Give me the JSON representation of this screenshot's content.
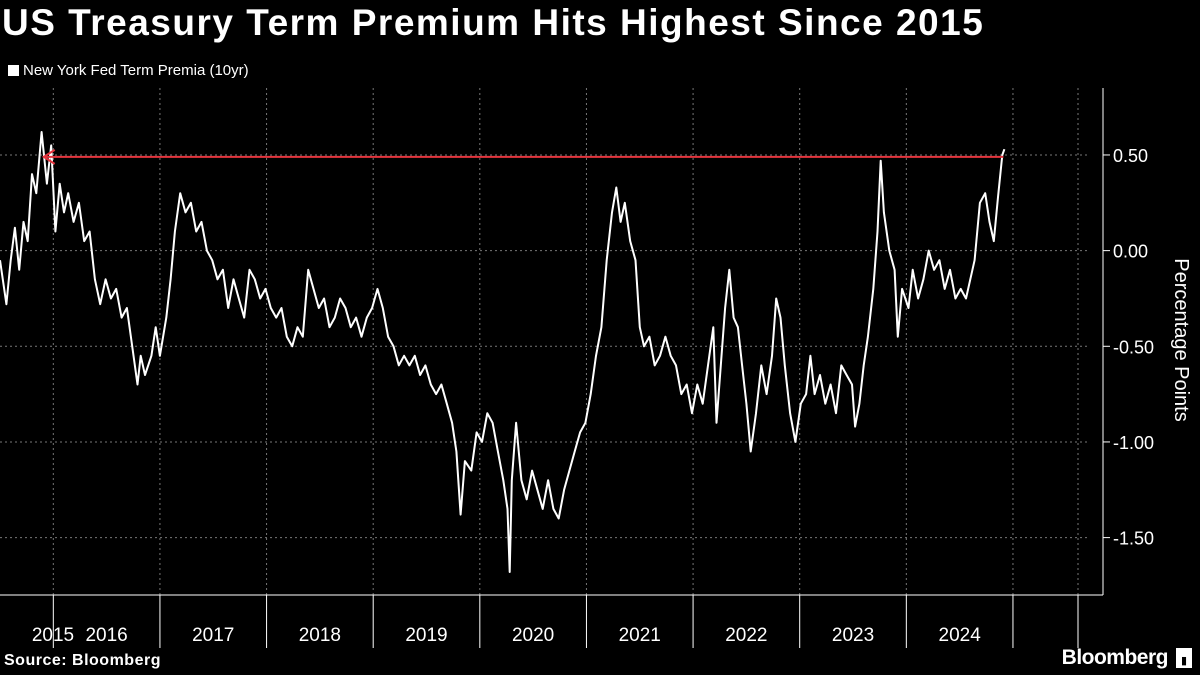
{
  "title": "US Treasury Term Premium Hits Highest Since 2015",
  "source": "Source: Bloomberg",
  "brand": "Bloomberg",
  "colors": {
    "background": "#000000",
    "line": "#ffffff",
    "annotation": "#e5343d",
    "grid": "#777777"
  },
  "chart_data": {
    "type": "line",
    "title": "US Treasury Term Premium Hits Highest Since 2015",
    "xlabel": "",
    "ylabel": "Percentage Points",
    "ylim": [
      -1.8,
      0.85
    ],
    "xlim": [
      2014.86,
      2024.97
    ],
    "yticks": [
      0.5,
      0.0,
      -0.5,
      -1.0,
      -1.5
    ],
    "ytick_labels": [
      "0.50",
      "0.00",
      "-0.50",
      "-1.00",
      "-1.50"
    ],
    "xtick_labels": [
      "2015",
      "2016",
      "2017",
      "2018",
      "2019",
      "2020",
      "2021",
      "2022",
      "2023",
      "2024"
    ],
    "year_dividers": [
      2015.36,
      2016.36,
      2017.36,
      2018.36,
      2019.36,
      2020.36,
      2021.36,
      2022.36,
      2023.36,
      2024.36,
      2024.97
    ],
    "grid": true,
    "legend": "top-left",
    "series": [
      {
        "name": "New York Fed Term Premia (10yr)",
        "points": [
          [
            2014.86,
            -0.05
          ],
          [
            2014.92,
            -0.28
          ],
          [
            2014.96,
            -0.05
          ],
          [
            2015.0,
            0.12
          ],
          [
            2015.04,
            -0.1
          ],
          [
            2015.08,
            0.15
          ],
          [
            2015.12,
            0.05
          ],
          [
            2015.16,
            0.4
          ],
          [
            2015.2,
            0.3
          ],
          [
            2015.25,
            0.62
          ],
          [
            2015.3,
            0.35
          ],
          [
            2015.34,
            0.55
          ],
          [
            2015.38,
            0.1
          ],
          [
            2015.42,
            0.35
          ],
          [
            2015.46,
            0.2
          ],
          [
            2015.5,
            0.3
          ],
          [
            2015.55,
            0.15
          ],
          [
            2015.6,
            0.25
          ],
          [
            2015.65,
            0.05
          ],
          [
            2015.7,
            0.1
          ],
          [
            2015.75,
            -0.15
          ],
          [
            2015.8,
            -0.28
          ],
          [
            2015.85,
            -0.15
          ],
          [
            2015.9,
            -0.25
          ],
          [
            2015.95,
            -0.2
          ],
          [
            2016.0,
            -0.35
          ],
          [
            2016.05,
            -0.3
          ],
          [
            2016.1,
            -0.5
          ],
          [
            2016.15,
            -0.7
          ],
          [
            2016.18,
            -0.55
          ],
          [
            2016.22,
            -0.65
          ],
          [
            2016.28,
            -0.55
          ],
          [
            2016.32,
            -0.4
          ],
          [
            2016.36,
            -0.55
          ],
          [
            2016.42,
            -0.35
          ],
          [
            2016.46,
            -0.15
          ],
          [
            2016.5,
            0.1
          ],
          [
            2016.55,
            0.3
          ],
          [
            2016.6,
            0.2
          ],
          [
            2016.65,
            0.25
          ],
          [
            2016.7,
            0.1
          ],
          [
            2016.75,
            0.15
          ],
          [
            2016.8,
            0.0
          ],
          [
            2016.85,
            -0.05
          ],
          [
            2016.9,
            -0.15
          ],
          [
            2016.95,
            -0.1
          ],
          [
            2017.0,
            -0.3
          ],
          [
            2017.05,
            -0.15
          ],
          [
            2017.1,
            -0.25
          ],
          [
            2017.15,
            -0.35
          ],
          [
            2017.2,
            -0.1
          ],
          [
            2017.25,
            -0.15
          ],
          [
            2017.3,
            -0.25
          ],
          [
            2017.35,
            -0.2
          ],
          [
            2017.4,
            -0.3
          ],
          [
            2017.45,
            -0.35
          ],
          [
            2017.5,
            -0.3
          ],
          [
            2017.55,
            -0.45
          ],
          [
            2017.6,
            -0.5
          ],
          [
            2017.65,
            -0.4
          ],
          [
            2017.7,
            -0.45
          ],
          [
            2017.75,
            -0.1
          ],
          [
            2017.8,
            -0.2
          ],
          [
            2017.85,
            -0.3
          ],
          [
            2017.9,
            -0.25
          ],
          [
            2017.95,
            -0.4
          ],
          [
            2018.0,
            -0.35
          ],
          [
            2018.05,
            -0.25
          ],
          [
            2018.1,
            -0.3
          ],
          [
            2018.15,
            -0.4
          ],
          [
            2018.2,
            -0.35
          ],
          [
            2018.25,
            -0.45
          ],
          [
            2018.3,
            -0.35
          ],
          [
            2018.35,
            -0.3
          ],
          [
            2018.4,
            -0.2
          ],
          [
            2018.45,
            -0.3
          ],
          [
            2018.5,
            -0.45
          ],
          [
            2018.55,
            -0.5
          ],
          [
            2018.6,
            -0.6
          ],
          [
            2018.65,
            -0.55
          ],
          [
            2018.7,
            -0.6
          ],
          [
            2018.75,
            -0.55
          ],
          [
            2018.8,
            -0.65
          ],
          [
            2018.85,
            -0.6
          ],
          [
            2018.9,
            -0.7
          ],
          [
            2018.95,
            -0.75
          ],
          [
            2019.0,
            -0.7
          ],
          [
            2019.05,
            -0.8
          ],
          [
            2019.1,
            -0.9
          ],
          [
            2019.14,
            -1.05
          ],
          [
            2019.18,
            -1.38
          ],
          [
            2019.22,
            -1.1
          ],
          [
            2019.28,
            -1.15
          ],
          [
            2019.33,
            -0.95
          ],
          [
            2019.38,
            -1.0
          ],
          [
            2019.43,
            -0.85
          ],
          [
            2019.48,
            -0.9
          ],
          [
            2019.53,
            -1.05
          ],
          [
            2019.58,
            -1.2
          ],
          [
            2019.62,
            -1.35
          ],
          [
            2019.64,
            -1.68
          ],
          [
            2019.66,
            -1.2
          ],
          [
            2019.7,
            -0.9
          ],
          [
            2019.75,
            -1.2
          ],
          [
            2019.8,
            -1.3
          ],
          [
            2019.85,
            -1.15
          ],
          [
            2019.9,
            -1.25
          ],
          [
            2019.95,
            -1.35
          ],
          [
            2020.0,
            -1.2
          ],
          [
            2020.05,
            -1.35
          ],
          [
            2020.1,
            -1.4
          ],
          [
            2020.15,
            -1.25
          ],
          [
            2020.2,
            -1.15
          ],
          [
            2020.25,
            -1.05
          ],
          [
            2020.3,
            -0.95
          ],
          [
            2020.35,
            -0.9
          ],
          [
            2020.4,
            -0.75
          ],
          [
            2020.45,
            -0.55
          ],
          [
            2020.5,
            -0.4
          ],
          [
            2020.55,
            -0.05
          ],
          [
            2020.6,
            0.2
          ],
          [
            2020.64,
            0.33
          ],
          [
            2020.68,
            0.15
          ],
          [
            2020.72,
            0.25
          ],
          [
            2020.77,
            0.05
          ],
          [
            2020.82,
            -0.05
          ],
          [
            2020.86,
            -0.4
          ],
          [
            2020.9,
            -0.5
          ],
          [
            2020.95,
            -0.45
          ],
          [
            2021.0,
            -0.6
          ],
          [
            2021.05,
            -0.55
          ],
          [
            2021.1,
            -0.45
          ],
          [
            2021.15,
            -0.55
          ],
          [
            2021.2,
            -0.6
          ],
          [
            2021.25,
            -0.75
          ],
          [
            2021.3,
            -0.7
          ],
          [
            2021.35,
            -0.85
          ],
          [
            2021.4,
            -0.7
          ],
          [
            2021.45,
            -0.8
          ],
          [
            2021.5,
            -0.6
          ],
          [
            2021.55,
            -0.4
          ],
          [
            2021.58,
            -0.9
          ],
          [
            2021.62,
            -0.6
          ],
          [
            2021.66,
            -0.3
          ],
          [
            2021.7,
            -0.1
          ],
          [
            2021.74,
            -0.35
          ],
          [
            2021.78,
            -0.4
          ],
          [
            2021.82,
            -0.6
          ],
          [
            2021.86,
            -0.8
          ],
          [
            2021.9,
            -1.05
          ],
          [
            2021.95,
            -0.85
          ],
          [
            2022.0,
            -0.6
          ],
          [
            2022.05,
            -0.75
          ],
          [
            2022.1,
            -0.55
          ],
          [
            2022.14,
            -0.25
          ],
          [
            2022.18,
            -0.35
          ],
          [
            2022.22,
            -0.6
          ],
          [
            2022.27,
            -0.85
          ],
          [
            2022.32,
            -1.0
          ],
          [
            2022.37,
            -0.8
          ],
          [
            2022.42,
            -0.75
          ],
          [
            2022.46,
            -0.55
          ],
          [
            2022.5,
            -0.75
          ],
          [
            2022.55,
            -0.65
          ],
          [
            2022.6,
            -0.8
          ],
          [
            2022.65,
            -0.7
          ],
          [
            2022.7,
            -0.85
          ],
          [
            2022.75,
            -0.6
          ],
          [
            2022.8,
            -0.65
          ],
          [
            2022.85,
            -0.7
          ],
          [
            2022.88,
            -0.92
          ],
          [
            2022.92,
            -0.8
          ],
          [
            2022.96,
            -0.6
          ],
          [
            2023.0,
            -0.45
          ],
          [
            2023.05,
            -0.2
          ],
          [
            2023.09,
            0.1
          ],
          [
            2023.12,
            0.47
          ],
          [
            2023.15,
            0.2
          ],
          [
            2023.2,
            0.0
          ],
          [
            2023.25,
            -0.1
          ],
          [
            2023.28,
            -0.45
          ],
          [
            2023.32,
            -0.2
          ],
          [
            2023.38,
            -0.3
          ],
          [
            2023.42,
            -0.1
          ],
          [
            2023.47,
            -0.25
          ],
          [
            2023.52,
            -0.15
          ],
          [
            2023.57,
            0.0
          ],
          [
            2023.62,
            -0.1
          ],
          [
            2023.67,
            -0.05
          ],
          [
            2023.72,
            -0.2
          ],
          [
            2023.77,
            -0.1
          ],
          [
            2023.82,
            -0.25
          ],
          [
            2023.87,
            -0.2
          ],
          [
            2023.92,
            -0.25
          ],
          [
            2023.96,
            -0.15
          ],
          [
            2024.0,
            -0.05
          ],
          [
            2024.05,
            0.25
          ],
          [
            2024.1,
            0.3
          ],
          [
            2024.14,
            0.15
          ],
          [
            2024.18,
            0.05
          ],
          [
            2024.22,
            0.28
          ],
          [
            2024.26,
            0.5
          ],
          [
            2024.28,
            0.53
          ]
        ]
      }
    ],
    "annotation": {
      "type": "arrow",
      "x_from": 2024.27,
      "x_to": 2015.27,
      "y": 0.49
    }
  }
}
